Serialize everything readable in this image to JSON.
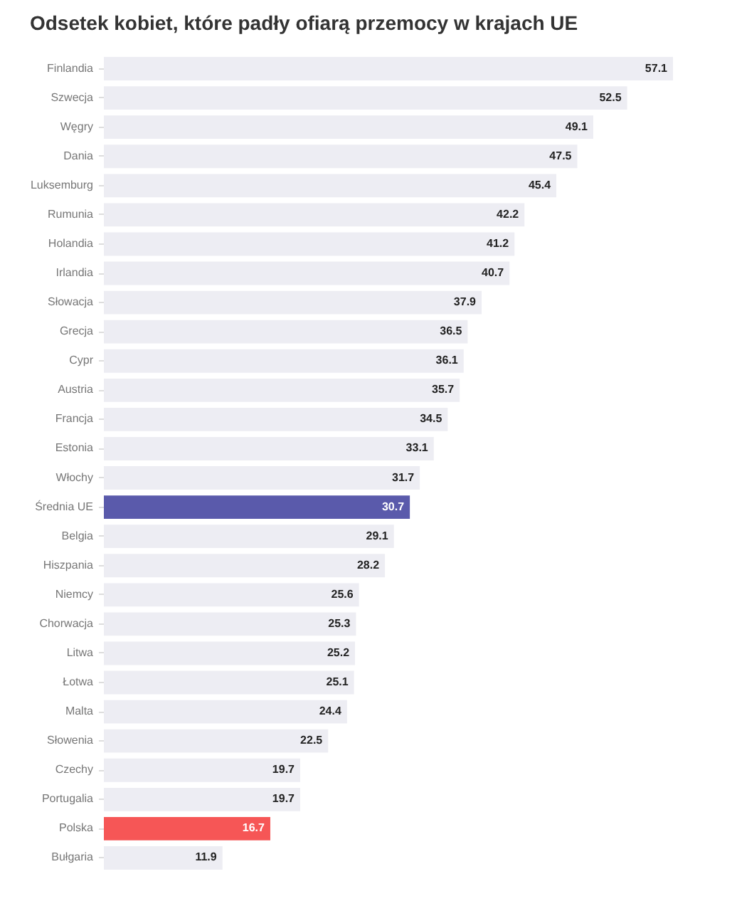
{
  "chart_data": {
    "type": "bar",
    "orientation": "horizontal",
    "title": "Odsetek kobiet, które padły ofiarą przemocy w krajach UE",
    "categories": [
      "Finlandia",
      "Szwecja",
      "Węgry",
      "Dania",
      "Luksemburg",
      "Rumunia",
      "Holandia",
      "Irlandia",
      "Słowacja",
      "Grecja",
      "Cypr",
      "Austria",
      "Francja",
      "Estonia",
      "Włochy",
      "Średnia UE",
      "Belgia",
      "Hiszpania",
      "Niemcy",
      "Chorwacja",
      "Litwa",
      "Łotwa",
      "Malta",
      "Słowenia",
      "Czechy",
      "Portugalia",
      "Polska",
      "Bułgaria"
    ],
    "values": [
      57.1,
      52.5,
      49.1,
      47.5,
      45.4,
      42.2,
      41.2,
      40.7,
      37.9,
      36.5,
      36.1,
      35.7,
      34.5,
      33.1,
      31.7,
      30.7,
      29.1,
      28.2,
      25.6,
      25.3,
      25.2,
      25.1,
      24.4,
      22.5,
      19.7,
      19.7,
      16.7,
      11.9
    ],
    "colors": [
      "#ededf3",
      "#ededf3",
      "#ededf3",
      "#ededf3",
      "#ededf3",
      "#ededf3",
      "#ededf3",
      "#ededf3",
      "#ededf3",
      "#ededf3",
      "#ededf3",
      "#ededf3",
      "#ededf3",
      "#ededf3",
      "#ededf3",
      "#5a5aab",
      "#ededf3",
      "#ededf3",
      "#ededf3",
      "#ededf3",
      "#ededf3",
      "#ededf3",
      "#ededf3",
      "#ededf3",
      "#ededf3",
      "#ededf3",
      "#f65656",
      "#ededf3"
    ],
    "data_labels": true
  }
}
